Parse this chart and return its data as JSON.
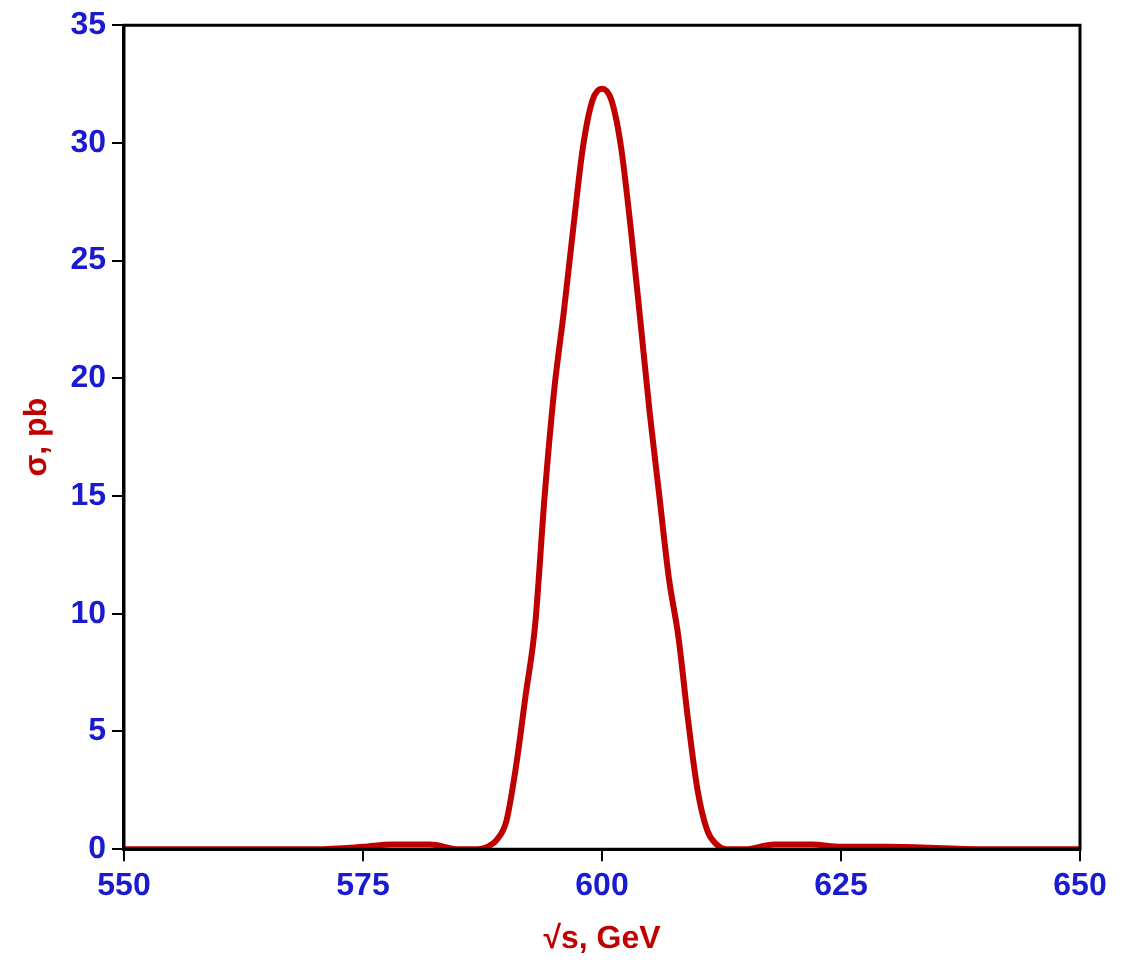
{
  "chart_data": {
    "type": "line",
    "xlabel": "√s, GeV",
    "ylabel": "σ, pb",
    "xlim": [
      550,
      650
    ],
    "xticks": [
      550,
      575,
      600,
      625,
      650
    ],
    "ylim": [
      0,
      35
    ],
    "yticks": [
      0,
      5,
      10,
      15,
      20,
      25,
      30,
      35
    ],
    "grid": false,
    "legend": false,
    "marker": "none",
    "line_style": "solid",
    "series": [
      {
        "color": "#c00000",
        "x": [
          550,
          560,
          570,
          575,
          578,
          580,
          582,
          585,
          587,
          588,
          589,
          590,
          591,
          592,
          593,
          594,
          595,
          596,
          597,
          598,
          599,
          600,
          601,
          602,
          603,
          604,
          605,
          606,
          607,
          608,
          609,
          610,
          611,
          612,
          613,
          615,
          618,
          620,
          622,
          625,
          630,
          640,
          650
        ],
        "values": [
          0,
          0,
          0,
          0.1,
          0.2,
          0.2,
          0.2,
          0,
          0,
          0.1,
          0.4,
          1.2,
          3.5,
          6.5,
          9.5,
          15,
          19.5,
          22.8,
          26.4,
          29.8,
          31.8,
          32.3,
          31.8,
          29.8,
          26.4,
          22.5,
          18.5,
          15,
          11.5,
          9,
          5.5,
          2.5,
          0.8,
          0.2,
          0,
          0,
          0.2,
          0.2,
          0.2,
          0.1,
          0.1,
          0,
          0
        ]
      }
    ]
  }
}
